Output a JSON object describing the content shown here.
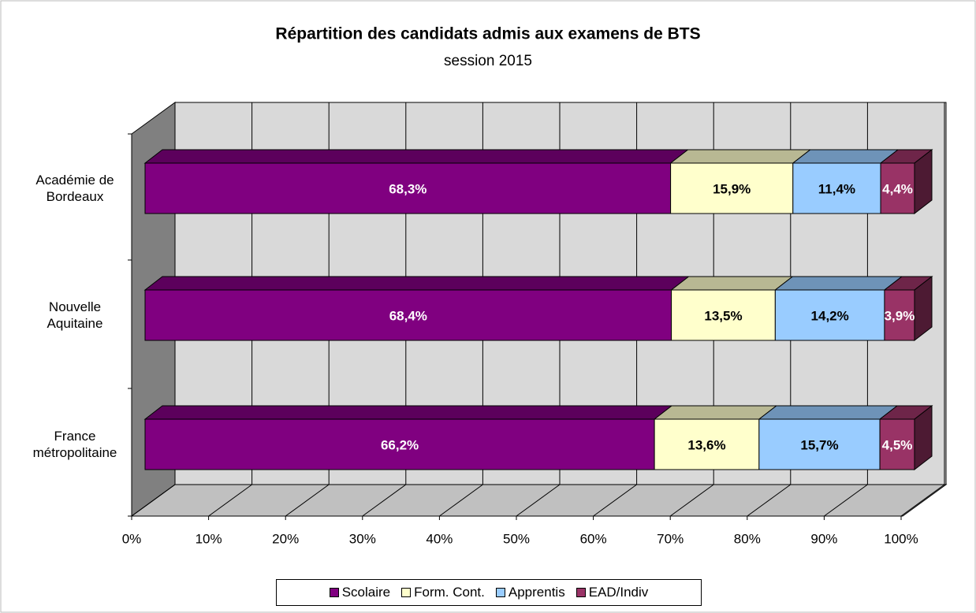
{
  "chart_data": {
    "type": "bar3d_stacked_horizontal",
    "title": "Répartition des candidats admis aux examens de BTS",
    "subtitle": "session 2015",
    "categories": [
      "Académie de Bordeaux",
      "Nouvelle Aquitaine",
      "France métropolitaine"
    ],
    "series": [
      {
        "name": "Scolaire",
        "color": "#800080",
        "values": [
          68.3,
          68.4,
          66.2
        ],
        "value_labels": [
          "68,3%",
          "68,4%",
          "66,2%"
        ]
      },
      {
        "name": "Form. Cont.",
        "color": "#ffffcc",
        "values": [
          15.9,
          13.5,
          13.6
        ],
        "value_labels": [
          "15,9%",
          "13,5%",
          "13,6%"
        ]
      },
      {
        "name": "Apprentis",
        "color": "#99ccff",
        "values": [
          11.4,
          14.2,
          15.7
        ],
        "value_labels": [
          "11,4%",
          "14,2%",
          "15,7%"
        ]
      },
      {
        "name": "EAD/Indiv",
        "color": "#993366",
        "values": [
          4.4,
          3.9,
          4.5
        ],
        "value_labels": [
          "4,4%",
          "3,9%",
          "4,5%"
        ]
      }
    ],
    "xlim": [
      0,
      100
    ],
    "xticks": [
      {
        "value": 0,
        "label": "0%"
      },
      {
        "value": 10,
        "label": "10%"
      },
      {
        "value": 20,
        "label": "20%"
      },
      {
        "value": 30,
        "label": "30%"
      },
      {
        "value": 40,
        "label": "40%"
      },
      {
        "value": 50,
        "label": "50%"
      },
      {
        "value": 60,
        "label": "60%"
      },
      {
        "value": 70,
        "label": "70%"
      },
      {
        "value": 80,
        "label": "80%"
      },
      {
        "value": 90,
        "label": "90%"
      },
      {
        "value": 100,
        "label": "100%"
      }
    ],
    "grid": true,
    "legend": "bottom"
  }
}
